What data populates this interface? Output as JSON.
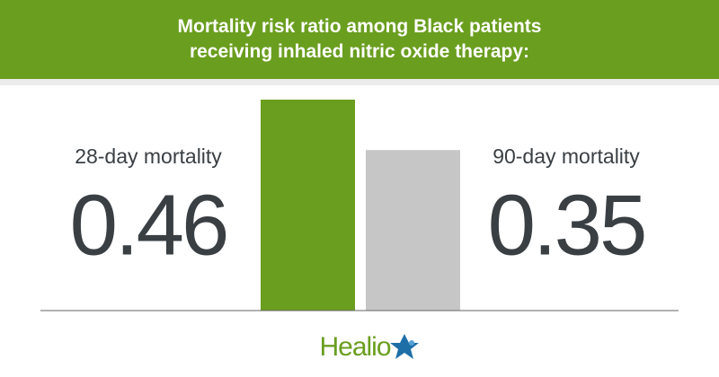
{
  "chart_data": {
    "type": "bar",
    "title": "Mortality risk ratio among Black patients receiving inhaled nitric oxide therapy:",
    "categories": [
      "28-day mortality",
      "90-day mortality"
    ],
    "values": [
      0.46,
      0.35
    ],
    "colors": [
      "#6a9e1f",
      "#c6c6c6"
    ],
    "brand": "Healio"
  }
}
